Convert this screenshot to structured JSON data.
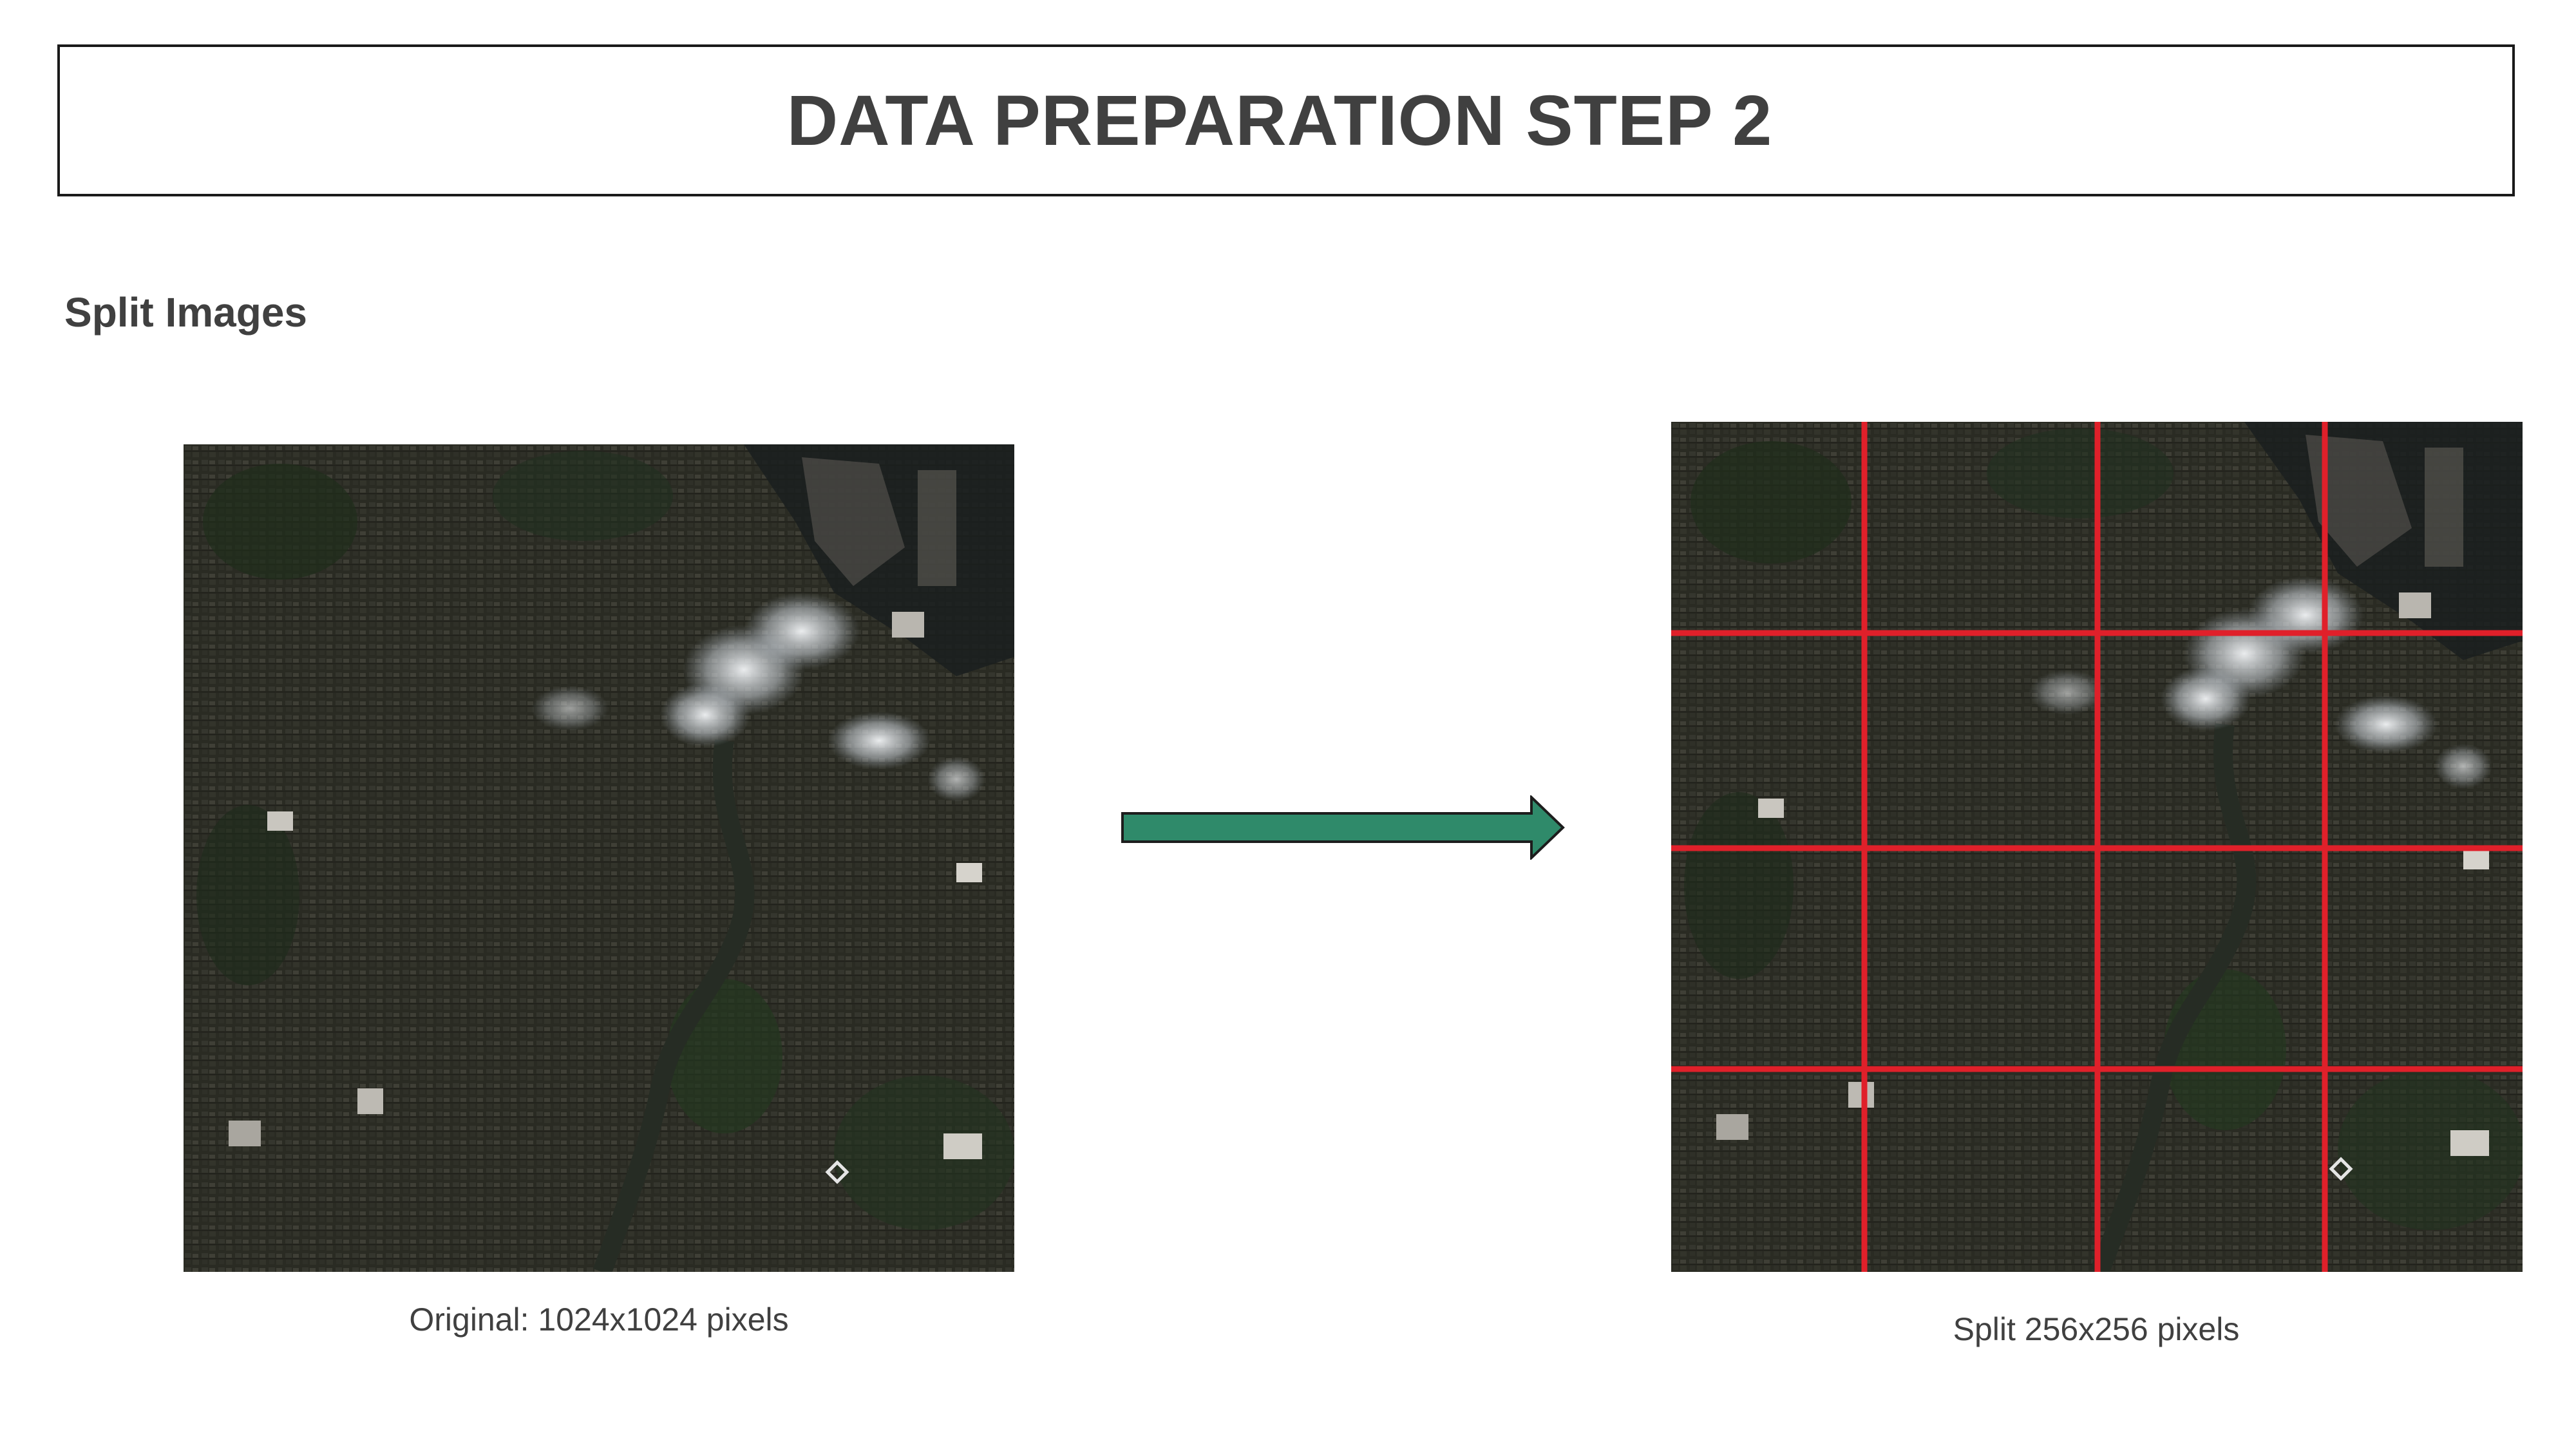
{
  "slide": {
    "title": "DATA PREPARATION STEP 2",
    "subtitle": "Split Images"
  },
  "images": {
    "original": {
      "caption": "Original: 1024x1024 pixels",
      "content": "satellite-image-city"
    },
    "split": {
      "caption": "Split 256x256 pixels",
      "content": "satellite-image-city-with-grid",
      "grid_color": "#e0202a"
    }
  },
  "arrow": {
    "icon": "right-arrow-icon",
    "fill_color": "#2f8a6a",
    "stroke_color": "#1d1d1d"
  },
  "colors": {
    "text": "#404040",
    "border": "#1a1a1a",
    "background": "#ffffff"
  }
}
